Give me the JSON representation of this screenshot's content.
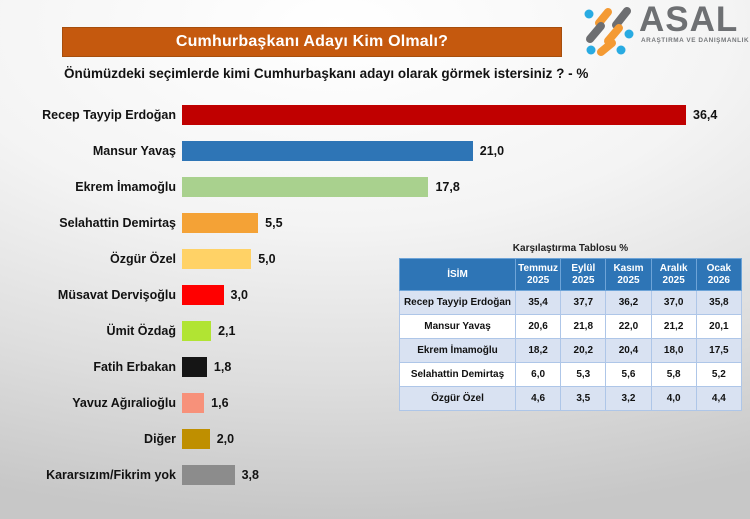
{
  "header": {
    "title": "Cumhurbaşkanı Adayı Kim Olmalı?",
    "banner_color": "#C5590E",
    "logo": {
      "name": "ASAL",
      "tagline": "ARAŞTIRMA VE DANIŞMANLIK",
      "icon_colors": {
        "orange": "#F49A33",
        "gray": "#6d6e71",
        "blue": "#29ABE2"
      }
    }
  },
  "question": "Önümüzdeki seçimlerde kimi Cumhurbaşkanı adayı olarak görmek istersiniz ? - %",
  "chart_data": {
    "type": "bar",
    "orientation": "horizontal",
    "title": "Cumhurbaşkanı Adayı Kim Olmalı?",
    "xlabel": "%",
    "ylabel": "",
    "grid": false,
    "data_labels": true,
    "xlim": [
      0,
      39
    ],
    "categories": [
      "Recep Tayyip Erdoğan",
      "Mansur Yavaş",
      "Ekrem İmamoğlu",
      "Selahattin Demirtaş",
      "Özgür Özel",
      "Müsavat Dervişoğlu",
      "Ümit Özdağ",
      "Fatih Erbakan",
      "Yavuz Ağıralioğlu",
      "Diğer",
      "Kararsızım/Fikrim yok"
    ],
    "values": [
      36.4,
      21.0,
      17.8,
      5.5,
      5.0,
      3.0,
      2.1,
      1.8,
      1.6,
      2.0,
      3.8
    ],
    "value_labels": [
      "36,4",
      "21,0",
      "17,8",
      "5,5",
      "5,0",
      "3,0",
      "2,1",
      "1,8",
      "1,6",
      "2,0",
      "3,8"
    ],
    "colors": [
      "#C00000",
      "#2E75B6",
      "#A9D18E",
      "#F4A236",
      "#FFD266",
      "#FF0000",
      "#B1E433",
      "#151515",
      "#F7917A",
      "#BF8F00",
      "#8C8C8C"
    ]
  },
  "comparison_table": {
    "title": "Karşılaştırma Tablosu %",
    "header_bg": "#2E75B6",
    "stripe_bg": "#D9E2F2",
    "white_bg": "#FFFFFF",
    "columns": [
      "İSİM",
      "Temmuz 2025",
      "Eylül 2025",
      "Kasım 2025",
      "Aralık 2025",
      "Ocak 2026"
    ],
    "rows": [
      {
        "name": "Recep Tayyip Erdoğan",
        "values": [
          "35,4",
          "37,7",
          "36,2",
          "37,0",
          "35,8"
        ]
      },
      {
        "name": "Mansur Yavaş",
        "values": [
          "20,6",
          "21,8",
          "22,0",
          "21,2",
          "20,1"
        ]
      },
      {
        "name": "Ekrem İmamoğlu",
        "values": [
          "18,2",
          "20,2",
          "20,4",
          "18,0",
          "17,5"
        ]
      },
      {
        "name": "Selahattin Demirtaş",
        "values": [
          "6,0",
          "5,3",
          "5,6",
          "5,8",
          "5,2"
        ]
      },
      {
        "name": "Özgür Özel",
        "values": [
          "4,6",
          "3,5",
          "3,2",
          "4,0",
          "4,4"
        ]
      }
    ]
  }
}
